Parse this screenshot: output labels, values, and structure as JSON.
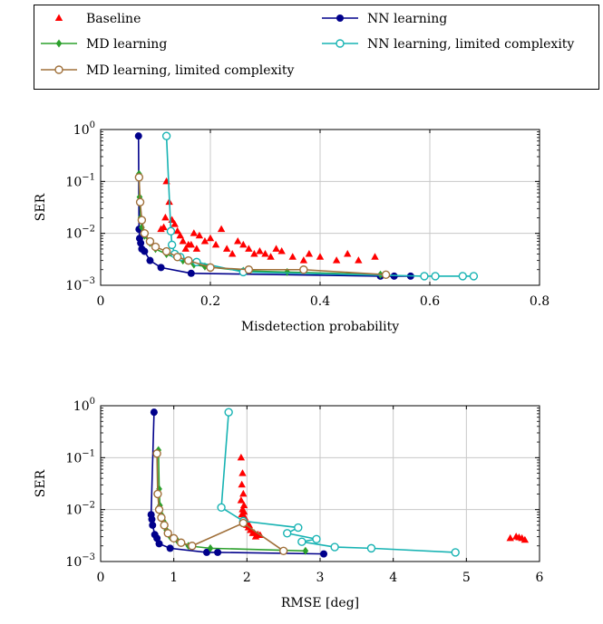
{
  "legend": {
    "entries": [
      {
        "label": "Baseline",
        "color": "#ff0000",
        "marker": "triangle",
        "line": false
      },
      {
        "label": "NN learning",
        "color": "#00008b",
        "marker": "filled-circle",
        "line": true
      },
      {
        "label": "MD learning",
        "color": "#2ca02c",
        "marker": "diamond",
        "line": true
      },
      {
        "label": "NN learning, limited complexity",
        "color": "#17b3b3",
        "marker": "open-circle",
        "line": true
      },
      {
        "label": "MD learning, limited complexity",
        "color": "#a0703a",
        "marker": "open-circle",
        "line": true
      }
    ]
  },
  "chart_data": [
    {
      "type": "scatter",
      "xlabel": "Misdetection probability",
      "ylabel": "SER",
      "xlim": [
        0,
        0.8
      ],
      "ylim": [
        0.001,
        1
      ],
      "yscale": "log",
      "xticks": [
        0,
        0.2,
        0.4,
        0.6,
        0.8
      ],
      "xtick_labels": [
        "0",
        "0.2",
        "0.4",
        "0.6",
        "0.8"
      ],
      "ytick_exponents": [
        "0",
        "−1",
        "−2",
        "−3"
      ],
      "ytick_base": "10",
      "grid": true,
      "series": [
        {
          "name": "Baseline",
          "x": [
            0.12,
            0.115,
            0.13,
            0.11,
            0.125,
            0.118,
            0.14,
            0.15,
            0.16,
            0.17,
            0.18,
            0.2,
            0.21,
            0.22,
            0.24,
            0.25,
            0.27,
            0.28,
            0.3,
            0.32,
            0.35,
            0.37,
            0.38,
            0.4,
            0.43,
            0.45,
            0.47,
            0.135,
            0.145,
            0.155,
            0.165,
            0.175,
            0.19,
            0.23,
            0.26,
            0.29,
            0.31,
            0.33,
            0.5
          ],
          "y": [
            0.1,
            0.013,
            0.018,
            0.012,
            0.04,
            0.02,
            0.011,
            0.007,
            0.006,
            0.01,
            0.009,
            0.008,
            0.006,
            0.012,
            0.004,
            0.007,
            0.005,
            0.004,
            0.004,
            0.005,
            0.0035,
            0.003,
            0.004,
            0.0035,
            0.003,
            0.004,
            0.003,
            0.015,
            0.009,
            0.005,
            0.006,
            0.005,
            0.007,
            0.005,
            0.006,
            0.0045,
            0.0035,
            0.0045,
            0.0035
          ]
        },
        {
          "name": "NN learning",
          "x": [
            0.069,
            0.07,
            0.071,
            0.073,
            0.075,
            0.08,
            0.09,
            0.11,
            0.165,
            0.51,
            0.535,
            0.565
          ],
          "y": [
            0.75,
            0.012,
            0.008,
            0.0065,
            0.005,
            0.0045,
            0.003,
            0.0022,
            0.0017,
            0.0015,
            0.0015,
            0.0015
          ]
        },
        {
          "name": "MD learning",
          "x": [
            0.07,
            0.071,
            0.073,
            0.075,
            0.08,
            0.09,
            0.1,
            0.12,
            0.15,
            0.17,
            0.19,
            0.26,
            0.34,
            0.51
          ],
          "y": [
            0.14,
            0.05,
            0.02,
            0.013,
            0.009,
            0.0065,
            0.005,
            0.004,
            0.003,
            0.0025,
            0.0023,
            0.0019,
            0.0018,
            0.0016
          ]
        },
        {
          "name": "NN learning, limited complexity",
          "x": [
            0.12,
            0.128,
            0.13,
            0.135,
            0.145,
            0.175,
            0.26,
            0.59,
            0.61,
            0.66,
            0.68
          ],
          "y": [
            0.75,
            0.011,
            0.006,
            0.004,
            0.0035,
            0.0028,
            0.0018,
            0.0015,
            0.0015,
            0.0015,
            0.0015
          ]
        },
        {
          "name": "MD learning, limited complexity",
          "x": [
            0.07,
            0.072,
            0.075,
            0.08,
            0.09,
            0.1,
            0.12,
            0.14,
            0.16,
            0.2,
            0.27,
            0.37,
            0.52
          ],
          "y": [
            0.12,
            0.04,
            0.018,
            0.01,
            0.007,
            0.0055,
            0.0045,
            0.0035,
            0.003,
            0.0022,
            0.002,
            0.002,
            0.0016
          ]
        }
      ]
    },
    {
      "type": "scatter",
      "xlabel": "RMSE [deg]",
      "ylabel": "SER",
      "xlim": [
        0,
        6
      ],
      "ylim": [
        0.001,
        1
      ],
      "yscale": "log",
      "xticks": [
        0,
        1,
        2,
        3,
        4,
        5,
        6
      ],
      "xtick_labels": [
        "0",
        "1",
        "2",
        "3",
        "4",
        "5",
        "6"
      ],
      "ytick_exponents": [
        "0",
        "−1",
        "−2",
        "−3"
      ],
      "ytick_base": "10",
      "grid": true,
      "series": [
        {
          "name": "Baseline",
          "x": [
            1.92,
            1.94,
            1.93,
            1.95,
            1.92,
            1.96,
            1.94,
            1.93,
            1.97,
            1.98,
            1.95,
            2.0,
            2.02,
            2.05,
            2.08,
            2.1,
            2.12,
            2.15,
            2.18,
            1.96,
            1.99,
            2.03,
            2.06,
            5.6,
            5.68,
            5.72,
            5.76,
            5.8
          ],
          "y": [
            0.1,
            0.05,
            0.03,
            0.02,
            0.015,
            0.012,
            0.01,
            0.008,
            0.007,
            0.006,
            0.0055,
            0.005,
            0.0045,
            0.004,
            0.0035,
            0.0035,
            0.003,
            0.0033,
            0.0032,
            0.009,
            0.006,
            0.005,
            0.004,
            0.0028,
            0.003,
            0.0029,
            0.0028,
            0.0026
          ]
        },
        {
          "name": "NN learning",
          "x": [
            0.73,
            0.69,
            0.7,
            0.71,
            0.74,
            0.77,
            0.8,
            0.95,
            1.45,
            1.6,
            3.05
          ],
          "y": [
            0.75,
            0.008,
            0.0065,
            0.005,
            0.0033,
            0.0028,
            0.0022,
            0.0018,
            0.0015,
            0.0015,
            0.0014
          ]
        },
        {
          "name": "MD learning",
          "x": [
            0.79,
            0.8,
            0.81,
            0.83,
            0.86,
            0.9,
            0.95,
            1.05,
            1.2,
            1.5,
            2.8
          ],
          "y": [
            0.14,
            0.025,
            0.012,
            0.008,
            0.006,
            0.004,
            0.003,
            0.0025,
            0.002,
            0.0018,
            0.0016
          ]
        },
        {
          "name": "NN learning, limited complexity",
          "x": [
            1.75,
            1.65,
            1.95,
            2.7,
            2.55,
            2.95,
            2.75,
            3.2,
            3.7,
            4.85
          ],
          "y": [
            0.75,
            0.011,
            0.006,
            0.0045,
            0.0035,
            0.0027,
            0.0024,
            0.0019,
            0.0018,
            0.0015
          ]
        },
        {
          "name": "MD learning, limited complexity",
          "x": [
            0.77,
            0.78,
            0.8,
            0.83,
            0.87,
            0.92,
            1.0,
            1.1,
            1.25,
            1.95,
            2.5
          ],
          "y": [
            0.12,
            0.02,
            0.01,
            0.007,
            0.005,
            0.0035,
            0.0028,
            0.0023,
            0.002,
            0.0055,
            0.0016
          ]
        }
      ]
    }
  ]
}
